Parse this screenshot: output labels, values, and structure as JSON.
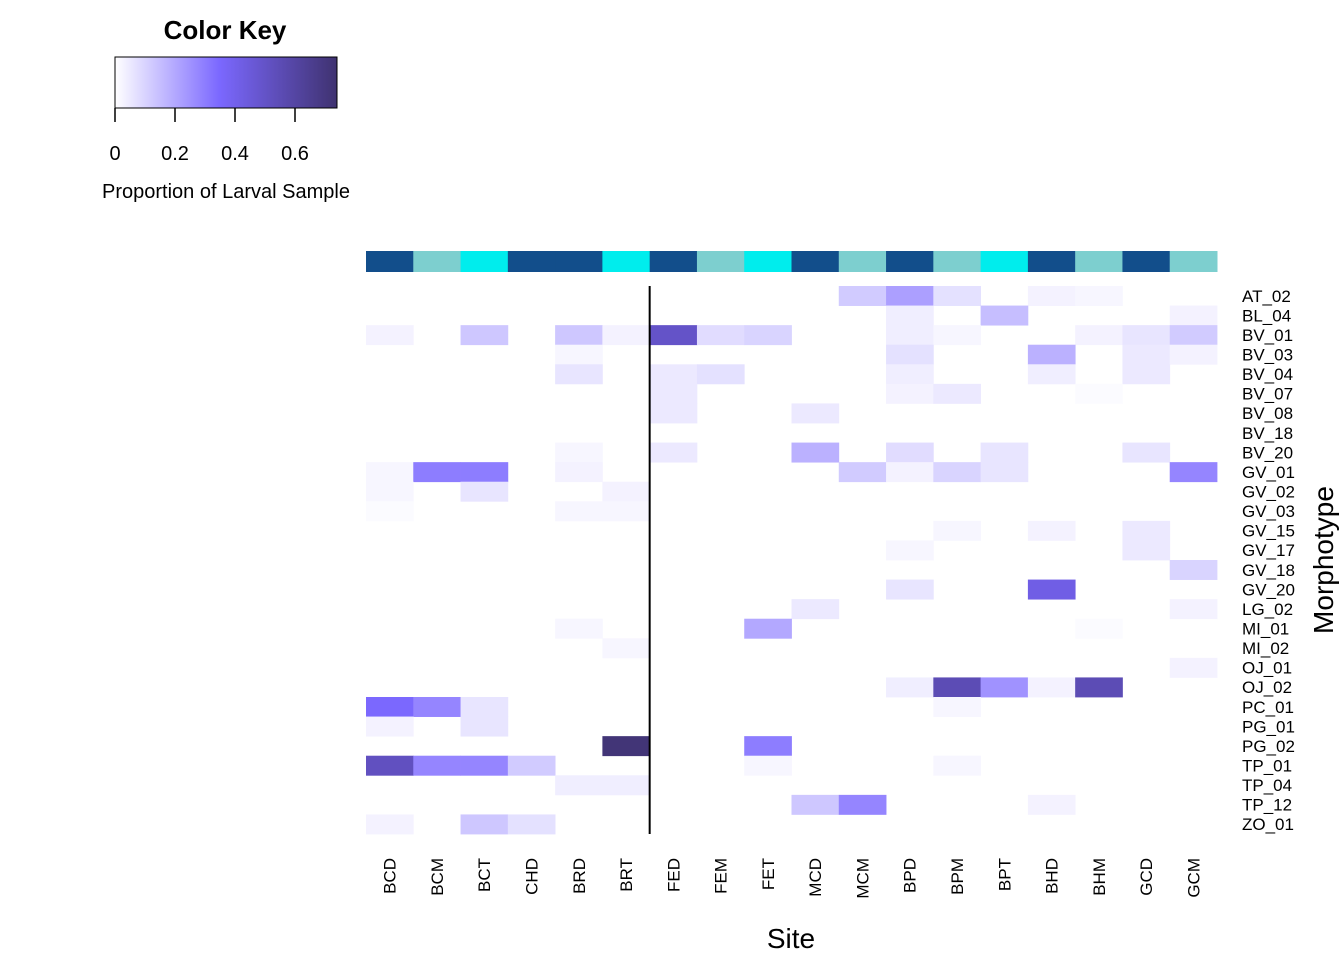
{
  "chart_data": {
    "type": "heatmap",
    "xlabel": "Site",
    "ylabel": "Morphotype",
    "color_key": {
      "title": "Color Key",
      "label": "Proportion of Larval Sample",
      "ticks": [
        "0",
        "0.2",
        "0.4",
        "0.6"
      ],
      "tick_values": [
        0,
        0.2,
        0.4,
        0.6
      ],
      "range": [
        0,
        0.74
      ],
      "colors": [
        "#ffffff",
        "#7b68ff",
        "#3f3270"
      ]
    },
    "columns": [
      "BCD",
      "BCM",
      "BCT",
      "CHD",
      "BRD",
      "BRT",
      "FED",
      "FEM",
      "FET",
      "MCD",
      "MCM",
      "BPD",
      "BPM",
      "BPT",
      "BHD",
      "BHM",
      "GCD",
      "GCM"
    ],
    "column_colors": [
      "#124e8b",
      "#7dcfcf",
      "#00eded",
      "#124e8b",
      "#124e8b",
      "#00eded",
      "#124e8b",
      "#7dcfcf",
      "#00eded",
      "#124e8b",
      "#7dcfcf",
      "#124e8b",
      "#7dcfcf",
      "#00eded",
      "#124e8b",
      "#7dcfcf",
      "#124e8b",
      "#7dcfcf"
    ],
    "divider_after_column": 6,
    "rows": [
      "AT_02",
      "BL_04",
      "BV_01",
      "BV_03",
      "BV_04",
      "BV_07",
      "BV_08",
      "BV_18",
      "BV_20",
      "GV_01",
      "GV_02",
      "GV_03",
      "GV_15",
      "GV_17",
      "GV_18",
      "GV_20",
      "LG_02",
      "MI_01",
      "MI_02",
      "OJ_01",
      "OJ_02",
      "PC_01",
      "PG_01",
      "PG_02",
      "TP_01",
      "TP_04",
      "TP_12",
      "ZO_01"
    ],
    "values": [
      [
        0,
        0,
        0,
        0,
        0,
        0,
        0,
        0,
        0,
        0,
        0.12,
        0.22,
        0.07,
        0,
        0.03,
        0.02,
        0,
        0
      ],
      [
        0,
        0,
        0,
        0,
        0,
        0,
        0,
        0,
        0,
        0,
        0,
        0.04,
        0,
        0.15,
        0,
        0,
        0,
        0.03
      ],
      [
        0.03,
        0,
        0.13,
        0,
        0.13,
        0.03,
        0.5,
        0.08,
        0.1,
        0,
        0,
        0.04,
        0.02,
        0,
        0,
        0.03,
        0.06,
        0.12
      ],
      [
        0,
        0,
        0,
        0,
        0.02,
        0,
        0,
        0,
        0,
        0,
        0,
        0.07,
        0,
        0,
        0.18,
        0,
        0.05,
        0.03
      ],
      [
        0,
        0,
        0,
        0,
        0.06,
        0,
        0.05,
        0.07,
        0,
        0,
        0,
        0.04,
        0,
        0,
        0.04,
        0,
        0.05,
        0
      ],
      [
        0,
        0,
        0,
        0,
        0,
        0,
        0.05,
        0,
        0,
        0,
        0,
        0.03,
        0.05,
        0,
        0,
        0.01,
        0,
        0
      ],
      [
        0,
        0,
        0,
        0,
        0,
        0,
        0.05,
        0,
        0,
        0.05,
        0,
        0,
        0,
        0,
        0,
        0,
        0,
        0
      ],
      [
        0,
        0,
        0,
        0,
        0,
        0,
        0,
        0,
        0,
        0,
        0,
        0,
        0,
        0,
        0,
        0,
        0,
        0
      ],
      [
        0,
        0,
        0,
        0,
        0.02,
        0,
        0.05,
        0,
        0,
        0.18,
        0,
        0.08,
        0,
        0.06,
        0,
        0,
        0.06,
        0
      ],
      [
        0.02,
        0.3,
        0.3,
        0,
        0.03,
        0,
        0,
        0,
        0,
        0,
        0.12,
        0.03,
        0.1,
        0.06,
        0,
        0,
        0,
        0.28
      ],
      [
        0.02,
        0,
        0.06,
        0,
        0,
        0.03,
        0,
        0,
        0,
        0,
        0,
        0,
        0,
        0,
        0,
        0,
        0,
        0
      ],
      [
        0.01,
        0,
        0,
        0,
        0.02,
        0.02,
        0,
        0,
        0,
        0,
        0,
        0,
        0,
        0,
        0,
        0,
        0,
        0
      ],
      [
        0,
        0,
        0,
        0,
        0,
        0,
        0,
        0,
        0,
        0,
        0,
        0,
        0.02,
        0,
        0.03,
        0,
        0.05,
        0
      ],
      [
        0,
        0,
        0,
        0,
        0,
        0,
        0,
        0,
        0,
        0,
        0,
        0.02,
        0,
        0,
        0,
        0,
        0.05,
        0
      ],
      [
        0,
        0,
        0,
        0,
        0,
        0,
        0,
        0,
        0,
        0,
        0,
        0,
        0,
        0,
        0,
        0,
        0,
        0.1
      ],
      [
        0,
        0,
        0,
        0,
        0,
        0,
        0,
        0,
        0,
        0,
        0,
        0.06,
        0,
        0,
        0.42,
        0,
        0,
        0
      ],
      [
        0,
        0,
        0,
        0,
        0,
        0,
        0,
        0,
        0,
        0.05,
        0,
        0,
        0,
        0,
        0,
        0,
        0,
        0.03
      ],
      [
        0,
        0,
        0,
        0,
        0.02,
        0,
        0,
        0,
        0.2,
        0,
        0,
        0,
        0,
        0,
        0,
        0.01,
        0,
        0
      ],
      [
        0,
        0,
        0,
        0,
        0,
        0.02,
        0,
        0,
        0,
        0,
        0,
        0,
        0,
        0,
        0,
        0,
        0,
        0
      ],
      [
        0,
        0,
        0,
        0,
        0,
        0,
        0,
        0,
        0,
        0,
        0,
        0,
        0,
        0,
        0,
        0,
        0,
        0.03
      ],
      [
        0,
        0,
        0,
        0,
        0,
        0,
        0,
        0,
        0,
        0,
        0,
        0.04,
        0.55,
        0.25,
        0.03,
        0.55,
        0,
        0
      ],
      [
        0.35,
        0.28,
        0.06,
        0,
        0,
        0,
        0,
        0,
        0,
        0,
        0,
        0,
        0.02,
        0,
        0,
        0,
        0,
        0
      ],
      [
        0.03,
        0,
        0.06,
        0,
        0,
        0,
        0,
        0,
        0,
        0,
        0,
        0,
        0,
        0,
        0,
        0,
        0,
        0
      ],
      [
        0,
        0,
        0,
        0,
        0,
        0.72,
        0,
        0,
        0.3,
        0,
        0,
        0,
        0,
        0,
        0,
        0,
        0,
        0
      ],
      [
        0.52,
        0.28,
        0.28,
        0.12,
        0,
        0,
        0,
        0,
        0.02,
        0,
        0,
        0,
        0.02,
        0,
        0,
        0,
        0,
        0
      ],
      [
        0,
        0,
        0,
        0,
        0.04,
        0.04,
        0,
        0,
        0,
        0,
        0,
        0,
        0,
        0,
        0,
        0,
        0,
        0
      ],
      [
        0,
        0,
        0,
        0,
        0,
        0,
        0,
        0,
        0,
        0.13,
        0.28,
        0,
        0,
        0,
        0.03,
        0,
        0,
        0
      ],
      [
        0.03,
        0,
        0.13,
        0.07,
        0,
        0,
        0,
        0,
        0,
        0,
        0,
        0,
        0,
        0,
        0,
        0,
        0,
        0
      ]
    ]
  }
}
